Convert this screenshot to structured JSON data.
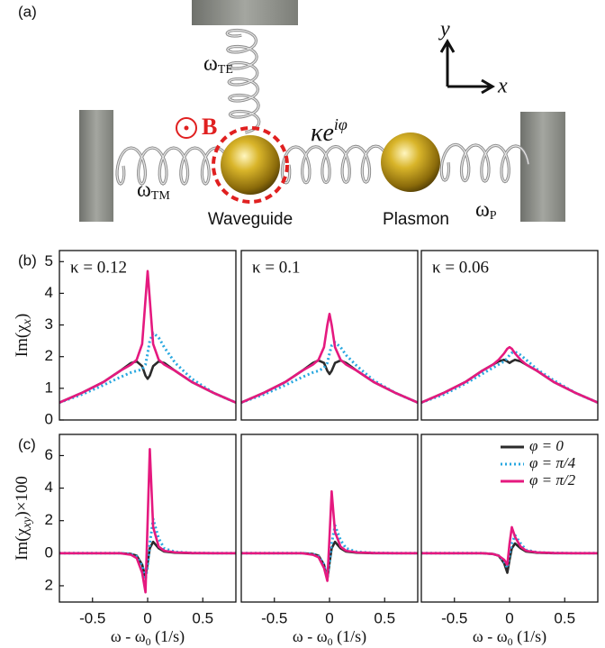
{
  "diagram": {
    "panel_label": "(a)",
    "omega_te": {
      "symbol": "ω",
      "sub": "TE"
    },
    "field": "B",
    "coupling": {
      "base": "κe",
      "sup": "iφ"
    },
    "omega_tm": {
      "symbol": "ω",
      "sub": "TM"
    },
    "waveguide": "Waveguide",
    "plasmon": "Plasmon",
    "omega_p": {
      "symbol": "ω",
      "sub": "P"
    },
    "axis_y": "y",
    "axis_x": "x"
  },
  "panel_labels": [
    "(b)",
    "(c)"
  ],
  "chart_data": [
    {
      "type": "line",
      "annotation": "κ = 0.12",
      "x": [
        -0.8,
        -0.6,
        -0.4,
        -0.25,
        -0.15,
        -0.1,
        -0.05,
        -0.02,
        0,
        0.02,
        0.05,
        0.1,
        0.15,
        0.25,
        0.4,
        0.6,
        0.8
      ],
      "series": [
        {
          "color": "#2b2b2b",
          "values": [
            0.55,
            0.85,
            1.2,
            1.55,
            1.8,
            1.85,
            1.7,
            1.4,
            1.3,
            1.4,
            1.7,
            1.85,
            1.8,
            1.55,
            1.2,
            0.85,
            0.55
          ]
        },
        {
          "color": "#29a8e0",
          "dash": "dotted",
          "values": [
            0.55,
            0.8,
            1.1,
            1.35,
            1.5,
            1.55,
            1.6,
            1.75,
            2.1,
            2.5,
            2.75,
            2.6,
            2.3,
            1.8,
            1.3,
            0.85,
            0.55
          ]
        },
        {
          "color": "#e5197f",
          "values": [
            0.55,
            0.85,
            1.2,
            1.55,
            1.75,
            1.9,
            2.4,
            3.8,
            4.7,
            3.8,
            2.4,
            1.9,
            1.75,
            1.55,
            1.2,
            0.85,
            0.55
          ]
        }
      ],
      "xlim": [
        -0.8,
        0.8
      ],
      "ylim": [
        0,
        5.35
      ],
      "yticks": [
        0,
        1,
        2,
        3,
        4,
        5
      ],
      "ylabel": [
        "Im(χ",
        "x",
        ")"
      ]
    },
    {
      "type": "line",
      "annotation": "κ = 0.1",
      "x": [
        -0.8,
        -0.6,
        -0.4,
        -0.25,
        -0.15,
        -0.1,
        -0.05,
        -0.02,
        0,
        0.02,
        0.05,
        0.1,
        0.15,
        0.25,
        0.4,
        0.6,
        0.8
      ],
      "series": [
        {
          "color": "#2b2b2b",
          "values": [
            0.55,
            0.85,
            1.2,
            1.55,
            1.8,
            1.88,
            1.8,
            1.55,
            1.45,
            1.55,
            1.8,
            1.88,
            1.8,
            1.55,
            1.2,
            0.85,
            0.55
          ]
        },
        {
          "color": "#29a8e0",
          "dash": "dotted",
          "values": [
            0.55,
            0.8,
            1.1,
            1.35,
            1.5,
            1.55,
            1.65,
            1.8,
            2.1,
            2.35,
            2.45,
            2.3,
            2.05,
            1.7,
            1.25,
            0.85,
            0.55
          ]
        },
        {
          "color": "#e5197f",
          "values": [
            0.55,
            0.85,
            1.2,
            1.55,
            1.75,
            1.9,
            2.3,
            3.0,
            3.35,
            3.0,
            2.3,
            1.9,
            1.75,
            1.55,
            1.2,
            0.85,
            0.55
          ]
        }
      ],
      "xlim": [
        -0.8,
        0.8
      ],
      "ylim": [
        0,
        5.35
      ]
    },
    {
      "type": "line",
      "annotation": "κ = 0.06",
      "x": [
        -0.8,
        -0.6,
        -0.4,
        -0.25,
        -0.15,
        -0.1,
        -0.05,
        -0.02,
        0,
        0.02,
        0.05,
        0.1,
        0.15,
        0.25,
        0.4,
        0.6,
        0.8
      ],
      "series": [
        {
          "color": "#2b2b2b",
          "values": [
            0.55,
            0.85,
            1.2,
            1.55,
            1.75,
            1.85,
            1.9,
            1.85,
            1.8,
            1.85,
            1.9,
            1.85,
            1.75,
            1.55,
            1.2,
            0.85,
            0.55
          ]
        },
        {
          "color": "#29a8e0",
          "dash": "dotted",
          "values": [
            0.55,
            0.8,
            1.15,
            1.45,
            1.65,
            1.75,
            1.85,
            1.95,
            2.05,
            2.12,
            2.15,
            2.05,
            1.9,
            1.6,
            1.25,
            0.85,
            0.55
          ]
        },
        {
          "color": "#e5197f",
          "values": [
            0.55,
            0.85,
            1.2,
            1.55,
            1.75,
            1.9,
            2.1,
            2.25,
            2.3,
            2.25,
            2.1,
            1.9,
            1.75,
            1.55,
            1.2,
            0.85,
            0.55
          ]
        }
      ],
      "xlim": [
        -0.8,
        0.8
      ],
      "ylim": [
        0,
        5.35
      ]
    },
    {
      "type": "line",
      "x": [
        -0.8,
        -0.6,
        -0.4,
        -0.25,
        -0.15,
        -0.1,
        -0.05,
        -0.02,
        0,
        0.02,
        0.05,
        0.1,
        0.15,
        0.25,
        0.4,
        0.6,
        0.8
      ],
      "series": [
        {
          "color": "#2b2b2b",
          "values": [
            0,
            0,
            0,
            0,
            -0.05,
            -0.15,
            -0.7,
            -1.5,
            -0.6,
            0.3,
            0.7,
            0.3,
            0.1,
            0.03,
            0,
            0,
            0
          ]
        },
        {
          "color": "#29a8e0",
          "dash": "dotted",
          "values": [
            0,
            0,
            0,
            0,
            -0.05,
            -0.2,
            -0.8,
            -1.6,
            -0.8,
            0.6,
            2.1,
            0.9,
            0.3,
            0.08,
            0.02,
            0,
            0
          ]
        },
        {
          "color": "#e5197f",
          "values": [
            0,
            0,
            0,
            0,
            -0.1,
            -0.3,
            -1.2,
            -2.4,
            2.0,
            6.4,
            1.6,
            0.4,
            0.15,
            0.05,
            0.01,
            0,
            0
          ]
        }
      ],
      "xlim": [
        -0.8,
        0.8
      ],
      "ylim": [
        -3,
        7.3
      ],
      "xticks": [
        -0.5,
        0,
        0.5
      ],
      "yticks": [
        {
          "value": -2,
          "label": "2"
        },
        0,
        2,
        4,
        6
      ],
      "ylabel": [
        "Im(χ",
        "xy",
        ")×100"
      ],
      "xlabel": [
        "ω - ω",
        "0",
        " (1/s)"
      ]
    },
    {
      "type": "line",
      "x": [
        -0.8,
        -0.6,
        -0.4,
        -0.25,
        -0.15,
        -0.1,
        -0.05,
        -0.02,
        0,
        0.02,
        0.05,
        0.1,
        0.15,
        0.25,
        0.4,
        0.6,
        0.8
      ],
      "series": [
        {
          "color": "#2b2b2b",
          "values": [
            0,
            0,
            0,
            0,
            -0.05,
            -0.15,
            -0.7,
            -1.6,
            -0.6,
            0.3,
            0.7,
            0.3,
            0.1,
            0.03,
            0,
            0,
            0
          ]
        },
        {
          "color": "#29a8e0",
          "dash": "dotted",
          "values": [
            0,
            0,
            0,
            0,
            -0.05,
            -0.2,
            -0.7,
            -1.5,
            -0.5,
            0.6,
            1.7,
            0.8,
            0.3,
            0.08,
            0.02,
            0,
            0
          ]
        },
        {
          "color": "#e5197f",
          "values": [
            0,
            0,
            0,
            0,
            -0.1,
            -0.25,
            -0.9,
            -1.7,
            1.0,
            3.8,
            1.3,
            0.4,
            0.15,
            0.05,
            0.01,
            0,
            0
          ]
        }
      ],
      "xlim": [
        -0.8,
        0.8
      ],
      "ylim": [
        -3,
        7.3
      ],
      "xticks": [
        -0.5,
        0,
        0.5
      ],
      "xlabel": [
        "ω - ω",
        "0",
        " (1/s)"
      ]
    },
    {
      "type": "line",
      "x": [
        -0.8,
        -0.6,
        -0.4,
        -0.25,
        -0.15,
        -0.1,
        -0.05,
        -0.02,
        0,
        0.02,
        0.05,
        0.1,
        0.15,
        0.25,
        0.4,
        0.6,
        0.8
      ],
      "series": [
        {
          "name": "φ = 0",
          "color": "#2b2b2b",
          "values": [
            0,
            0,
            0,
            0,
            -0.05,
            -0.15,
            -0.6,
            -1.2,
            -0.4,
            0.3,
            0.6,
            0.3,
            0.1,
            0.03,
            0,
            0,
            0
          ]
        },
        {
          "name": "φ = π/4",
          "color": "#29a8e0",
          "dash": "dotted",
          "values": [
            0,
            0,
            0,
            0,
            -0.05,
            -0.15,
            -0.5,
            -0.9,
            -0.1,
            0.6,
            1.1,
            0.6,
            0.2,
            0.05,
            0.01,
            0,
            0
          ]
        },
        {
          "name": "φ = π/2",
          "color": "#e5197f",
          "values": [
            0,
            0,
            0,
            0,
            -0.05,
            -0.15,
            -0.4,
            -0.7,
            0.6,
            1.6,
            1.0,
            0.4,
            0.15,
            0.05,
            0.01,
            0,
            0
          ]
        }
      ],
      "xlim": [
        -0.8,
        0.8
      ],
      "ylim": [
        -3,
        7.3
      ],
      "xticks": [
        -0.5,
        0,
        0.5
      ],
      "xlabel": [
        "ω - ω",
        "0",
        " (1/s)"
      ],
      "legend": "upper right"
    }
  ]
}
